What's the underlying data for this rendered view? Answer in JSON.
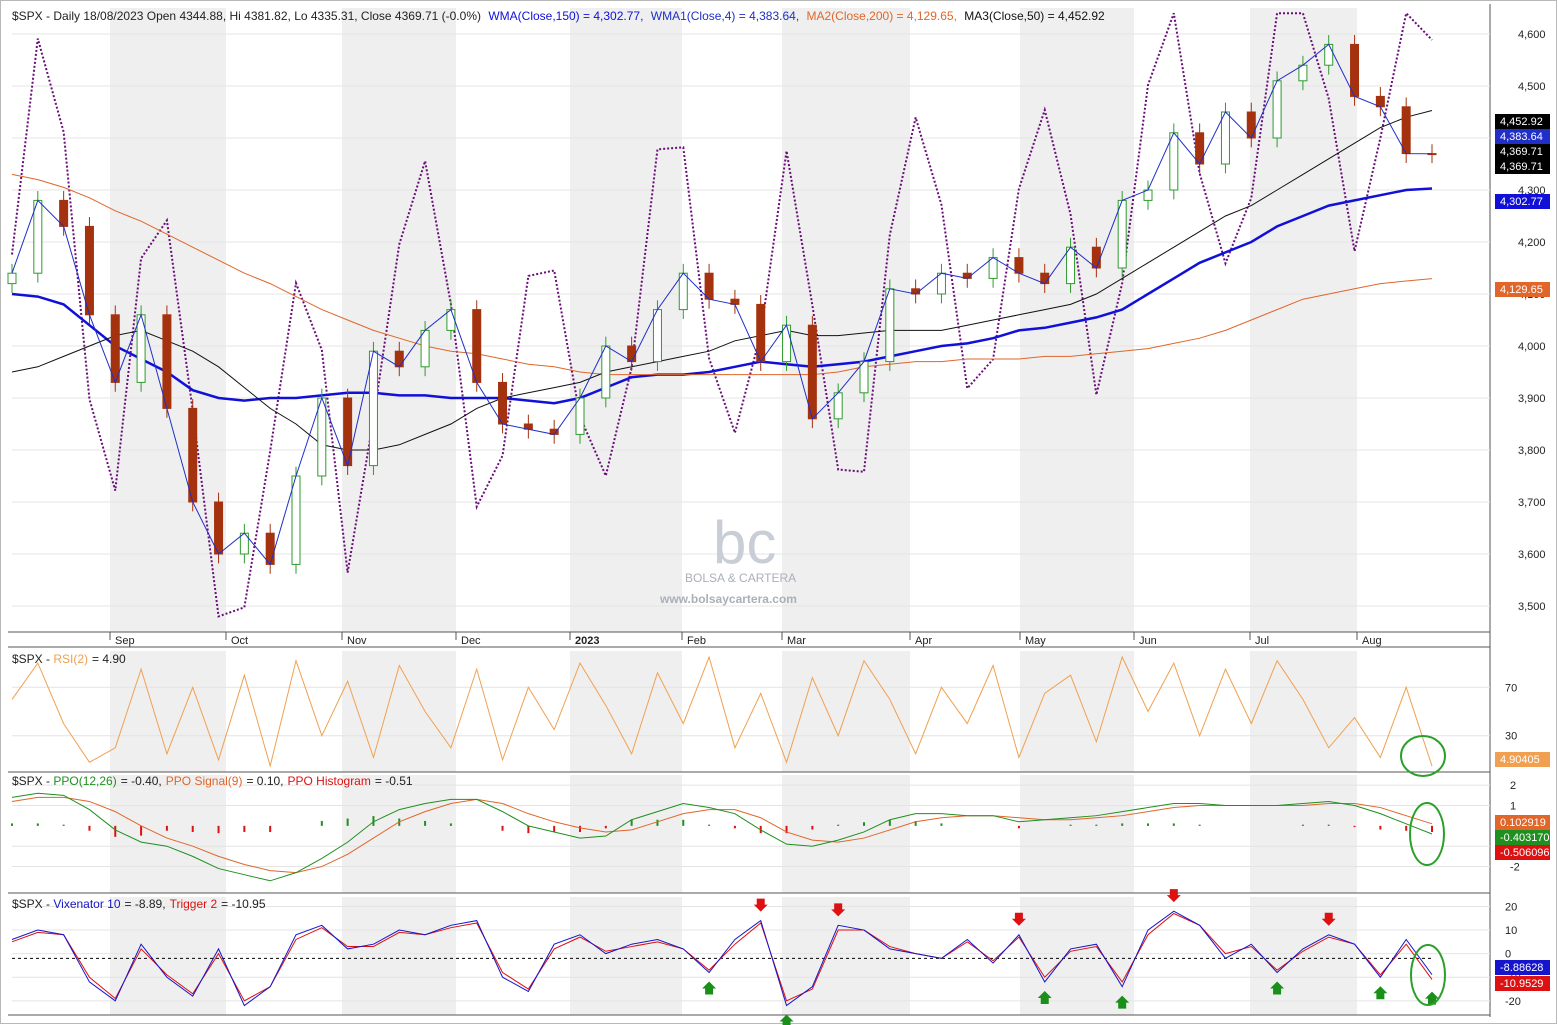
{
  "colors": {
    "up": "#2e9b2e",
    "down": "#a4320e",
    "wma150": "#1010d8",
    "wma4": "#1f2fc7",
    "ma200": "#e0662a",
    "ma50": "#111111",
    "dotted": "#6a0d78",
    "rsi": "#f0a050",
    "ppo": "#1f8f1f",
    "ppo_signal": "#e0662a",
    "vix": "#1515cc",
    "vix_trigger": "#dd1111",
    "arrow_up": "#1a8f1a",
    "arrow_down": "#dd1111",
    "circle": "#2aa02a"
  },
  "watermark": {
    "brand": "BOLSA & CARTERA",
    "url": "www.bolsaycartera.com"
  },
  "header": {
    "title": "$SPX - Daily 18/08/2023 Open 4344.88, Hi 4381.82, Lo 4335.31, Close 4369.71 (-0.0%)",
    "wma150": "WMA(Close,150) = 4,302.77,",
    "wma4": "WMA1(Close,4) = 4,383.64,",
    "ma200": "MA2(Close,200) = 4,129.65,",
    "ma50": "MA3(Close,50) = 4,452.92"
  },
  "rsi_header": {
    "prefix": "$SPX - ",
    "label": "RSI(2)",
    "value": "= 4.90"
  },
  "ppo_header": {
    "prefix": "$SPX - ",
    "ppo": "PPO(12,26)",
    "ppo_val": "= -0.40,",
    "signal": "PPO Signal(9)",
    "signal_val": "= 0.10,",
    "hist": "PPO Histogram",
    "hist_val": "= -0.51"
  },
  "vix_header": {
    "prefix": "$SPX - ",
    "vix": "Vixenator 10",
    "vix_val": "= -8.89,",
    "trig": "Trigger 2",
    "trig_val": "= -10.95"
  },
  "price_tags": {
    "ma50": "4,452.92",
    "wma4": "4,383.64",
    "close1": "4,369.71",
    "close2": "4,369.71",
    "wma150": "4,302.77",
    "ma200": "4,129.65"
  },
  "rsi_tag": "4.90405",
  "ppo_tags": {
    "signal": "0.102919",
    "ppo": "-0.403170",
    "hist": "-0.506096"
  },
  "vix_tags": {
    "vix": "-8.88628",
    "trig": "-10.9529"
  },
  "chart_data": [
    {
      "type": "candlestick",
      "panel": "price",
      "title": "$SPX - Daily 18/08/2023",
      "ylim": [
        3450,
        4650
      ],
      "y_ticks": [
        "4,600",
        "4,500",
        "4,400",
        "4,300",
        "4,200",
        "4,100",
        "4,000",
        "3,900",
        "3,800",
        "3,700",
        "3,600",
        "3,500"
      ],
      "x_ticks": [
        "Sep",
        "Oct",
        "Nov",
        "Dec",
        "2023",
        "Feb",
        "Mar",
        "Apr",
        "May",
        "Jun",
        "Jul",
        "Aug"
      ],
      "x": [
        "2022-08-01",
        "2022-08-08",
        "2022-08-15",
        "2022-08-22",
        "2022-08-29",
        "2022-09-05",
        "2022-09-12",
        "2022-09-19",
        "2022-09-26",
        "2022-10-03",
        "2022-10-10",
        "2022-10-17",
        "2022-10-24",
        "2022-10-31",
        "2022-11-07",
        "2022-11-14",
        "2022-11-21",
        "2022-11-28",
        "2022-12-05",
        "2022-12-12",
        "2022-12-19",
        "2022-12-27",
        "2023-01-03",
        "2023-01-09",
        "2023-01-17",
        "2023-01-23",
        "2023-01-30",
        "2023-02-06",
        "2023-02-13",
        "2023-02-21",
        "2023-02-27",
        "2023-03-06",
        "2023-03-13",
        "2023-03-20",
        "2023-03-27",
        "2023-04-03",
        "2023-04-10",
        "2023-04-17",
        "2023-04-24",
        "2023-05-01",
        "2023-05-08",
        "2023-05-15",
        "2023-05-22",
        "2023-05-30",
        "2023-06-05",
        "2023-06-12",
        "2023-06-20",
        "2023-06-26",
        "2023-07-03",
        "2023-07-10",
        "2023-07-17",
        "2023-07-24",
        "2023-07-31",
        "2023-08-07",
        "2023-08-14",
        "2023-08-18"
      ],
      "close": [
        4140,
        4280,
        4230,
        4060,
        3930,
        4060,
        3880,
        3700,
        3600,
        3640,
        3580,
        3750,
        3900,
        3770,
        3990,
        3960,
        4030,
        4070,
        3930,
        3850,
        3840,
        3830,
        3900,
        4000,
        3970,
        4070,
        4140,
        4090,
        4080,
        3970,
        4040,
        3860,
        3910,
        3970,
        4110,
        4100,
        4140,
        4130,
        4170,
        4140,
        4120,
        4190,
        4150,
        4280,
        4300,
        4410,
        4350,
        4450,
        4400,
        4510,
        4540,
        4580,
        4480,
        4460,
        4370,
        4369.71
      ],
      "series": [
        {
          "name": "WMA(Close,150)",
          "values": [
            4100,
            4095,
            4080,
            4040,
            4000,
            3975,
            3950,
            3915,
            3900,
            3895,
            3900,
            3900,
            3905,
            3910,
            3910,
            3905,
            3905,
            3900,
            3900,
            3900,
            3895,
            3890,
            3900,
            3920,
            3940,
            3945,
            3945,
            3950,
            3960,
            3970,
            3965,
            3960,
            3965,
            3970,
            3980,
            3990,
            4000,
            4005,
            4015,
            4030,
            4035,
            4045,
            4055,
            4070,
            4100,
            4130,
            4160,
            4180,
            4200,
            4230,
            4250,
            4270,
            4280,
            4290,
            4300,
            4302.77
          ]
        },
        {
          "name": "MA2(Close,200)",
          "values": [
            4330,
            4320,
            4305,
            4285,
            4260,
            4240,
            4215,
            4190,
            4165,
            4140,
            4120,
            4095,
            4070,
            4050,
            4030,
            4015,
            4000,
            3990,
            3985,
            3975,
            3965,
            3960,
            3950,
            3945,
            3945,
            3945,
            3945,
            3945,
            3945,
            3945,
            3945,
            3945,
            3950,
            3960,
            3965,
            3970,
            3970,
            3975,
            3975,
            3975,
            3980,
            3980,
            3985,
            3990,
            3995,
            4005,
            4015,
            4030,
            4050,
            4070,
            4090,
            4100,
            4110,
            4120,
            4125,
            4129.65
          ]
        },
        {
          "name": "MA3(Close,50)",
          "values": [
            3950,
            3960,
            3980,
            4000,
            4020,
            4030,
            4010,
            3990,
            3960,
            3920,
            3880,
            3850,
            3810,
            3800,
            3800,
            3810,
            3830,
            3850,
            3880,
            3900,
            3910,
            3920,
            3930,
            3950,
            3960,
            3970,
            3980,
            3990,
            4010,
            4020,
            4030,
            4020,
            4020,
            4025,
            4030,
            4030,
            4030,
            4040,
            4050,
            4060,
            4070,
            4080,
            4100,
            4130,
            4160,
            4190,
            4220,
            4250,
            4270,
            4300,
            4330,
            4360,
            4390,
            4420,
            4440,
            4452.92
          ]
        }
      ]
    },
    {
      "type": "line",
      "panel": "rsi",
      "title": "RSI(2)",
      "ylim": [
        0,
        100
      ],
      "y_ticks": [
        "70",
        "30"
      ],
      "series": [
        {
          "name": "RSI(2)",
          "values": [
            60,
            90,
            40,
            8,
            20,
            85,
            15,
            70,
            10,
            80,
            5,
            92,
            30,
            75,
            12,
            88,
            50,
            20,
            85,
            10,
            70,
            35,
            90,
            55,
            15,
            82,
            40,
            95,
            20,
            65,
            8,
            78,
            30,
            92,
            60,
            15,
            70,
            40,
            88,
            12,
            65,
            80,
            25,
            95,
            50,
            90,
            30,
            85,
            40,
            92,
            60,
            20,
            45,
            12,
            70,
            4.9
          ]
        }
      ]
    },
    {
      "type": "line",
      "panel": "ppo",
      "title": "PPO(12,26)",
      "ylim": [
        -3.3,
        2.5
      ],
      "y_ticks": [
        "2",
        "1",
        "-1",
        "-2"
      ],
      "series": [
        {
          "name": "PPO(12,26)",
          "values": [
            1.4,
            1.6,
            1.5,
            0.8,
            -0.2,
            -0.8,
            -1.0,
            -1.5,
            -2.1,
            -2.4,
            -2.7,
            -2.3,
            -1.6,
            -0.8,
            0.2,
            0.8,
            1.1,
            1.3,
            1.3,
            0.7,
            0.0,
            -0.3,
            -0.6,
            -0.5,
            0.3,
            0.7,
            1.1,
            0.9,
            0.6,
            -0.2,
            -0.9,
            -1.0,
            -0.7,
            -0.3,
            0.3,
            0.6,
            0.6,
            0.5,
            0.5,
            0.2,
            0.3,
            0.4,
            0.5,
            0.7,
            0.9,
            1.1,
            1.1,
            1.0,
            1.0,
            1.0,
            1.1,
            1.2,
            1.0,
            0.6,
            0.1,
            -0.4
          ]
        },
        {
          "name": "PPO Signal(9)",
          "values": [
            1.2,
            1.4,
            1.4,
            1.2,
            0.7,
            0.0,
            -0.6,
            -1.0,
            -1.5,
            -1.9,
            -2.2,
            -2.3,
            -2.0,
            -1.4,
            -0.6,
            0.2,
            0.7,
            1.1,
            1.3,
            1.1,
            0.6,
            0.2,
            -0.1,
            -0.3,
            -0.2,
            0.2,
            0.6,
            0.8,
            0.8,
            0.4,
            -0.3,
            -0.7,
            -0.8,
            -0.6,
            -0.2,
            0.2,
            0.4,
            0.5,
            0.5,
            0.4,
            0.3,
            0.3,
            0.4,
            0.5,
            0.7,
            0.9,
            1.0,
            1.0,
            1.0,
            1.0,
            1.0,
            1.1,
            1.1,
            0.9,
            0.5,
            0.1
          ]
        }
      ]
    },
    {
      "type": "line",
      "panel": "vixenator",
      "title": "Vixenator 10",
      "ylim": [
        -26,
        24
      ],
      "y_ticks": [
        "20",
        "10",
        "0",
        "-10",
        "-20"
      ],
      "series": [
        {
          "name": "Vixenator 10",
          "values": [
            6,
            10,
            8,
            -12,
            -20,
            4,
            -10,
            -18,
            2,
            -22,
            -14,
            8,
            12,
            2,
            4,
            10,
            8,
            12,
            14,
            -10,
            -16,
            4,
            8,
            0,
            4,
            6,
            2,
            -8,
            6,
            14,
            -22,
            -14,
            12,
            10,
            2,
            0,
            -2,
            6,
            -4,
            8,
            -12,
            2,
            4,
            -14,
            10,
            18,
            12,
            -2,
            4,
            -8,
            2,
            8,
            4,
            -10,
            6,
            -8.89
          ]
        },
        {
          "name": "Trigger 2",
          "values": [
            5,
            9,
            8,
            -10,
            -19,
            2,
            -9,
            -17,
            0,
            -20,
            -14,
            6,
            11,
            3,
            3,
            9,
            8,
            11,
            13,
            -8,
            -15,
            2,
            7,
            1,
            3,
            5,
            2,
            -7,
            4,
            13,
            -20,
            -15,
            10,
            10,
            3,
            0,
            -2,
            5,
            -3,
            7,
            -10,
            1,
            3,
            -12,
            8,
            17,
            12,
            0,
            3,
            -7,
            1,
            7,
            4,
            -9,
            4,
            -10.95
          ]
        }
      ]
    }
  ]
}
